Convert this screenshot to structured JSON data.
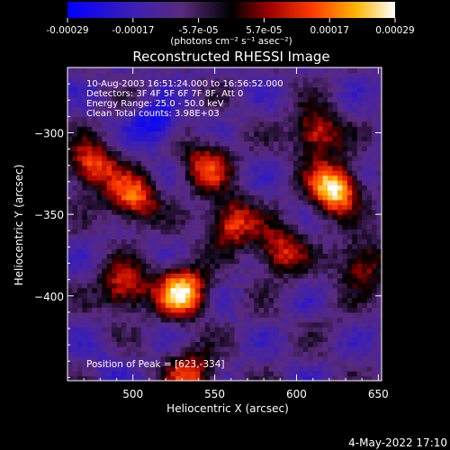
{
  "chart_data": {
    "type": "heatmap",
    "title": "Reconstructed RHESSI Image",
    "xlabel": "Heliocentric X (arcsec)",
    "ylabel": "Heliocentric Y (arcsec)",
    "xlim": [
      460,
      652
    ],
    "ylim": [
      -452,
      -260
    ],
    "xticks": [
      500,
      550,
      600,
      650
    ],
    "yticks": [
      -300,
      -350,
      -400
    ],
    "colorbar": {
      "ticks": [
        "-0.00029",
        "-0.00017",
        "-5.7e-05",
        "5.7e-05",
        "0.00017",
        "0.00029"
      ],
      "label": "(photons cm⁻² s⁻¹ asec⁻²)",
      "range": [
        -0.00029,
        0.00029
      ]
    },
    "annotations": [
      "10-Aug-2003 16:51:24.000 to 16:56:52.000",
      "Detectors: 3F 4F 5F 6F 7F 8F, Att 0",
      "Energy Range: 25.0 - 50.0 keV",
      "Clean    Total counts: 3.98E+03"
    ],
    "peak_text": "Position of Peak = [623,-334]",
    "peak": [
      623,
      -334
    ],
    "hotspots": [
      {
        "x": 623,
        "y": -334,
        "value": 0.00029
      },
      {
        "x": 530,
        "y": -397,
        "value": 0.00027
      },
      {
        "x": 500,
        "y": -340,
        "value": 0.00017
      },
      {
        "x": 475,
        "y": -320,
        "value": 0.00016
      },
      {
        "x": 560,
        "y": -355,
        "value": 0.00015
      },
      {
        "x": 612,
        "y": -300,
        "value": 0.00014
      },
      {
        "x": 495,
        "y": -395,
        "value": 0.00013
      },
      {
        "x": 545,
        "y": -320,
        "value": 0.00012
      },
      {
        "x": 590,
        "y": -372,
        "value": 0.00012
      },
      {
        "x": 640,
        "y": -380,
        "value": 0.0001
      },
      {
        "x": 535,
        "y": -448,
        "value": 0.00013
      }
    ],
    "coldspots": [
      {
        "x": 514,
        "y": -295,
        "value": -0.00029
      },
      {
        "x": 485,
        "y": -440,
        "value": -0.00015
      },
      {
        "x": 620,
        "y": -415,
        "value": -8e-05
      }
    ]
  },
  "footer": {
    "date": "4-May-2022 17:10"
  }
}
